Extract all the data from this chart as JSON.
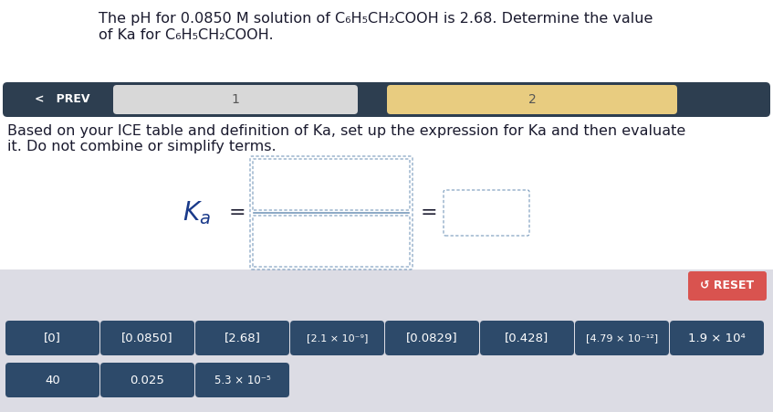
{
  "title_line1": "The pH for 0.0850 M solution of C₆H₅CH₂COOH is 2.68. Determine the value",
  "title_line2": "of Ka for C₆H₅CH₂COOH.",
  "nav_bg": "#2d3e50",
  "nav_label_prev": "<   PREV",
  "nav_tab1": "1",
  "nav_tab2": "2",
  "nav_tab1_color": "#d8d8d8",
  "nav_tab2_color": "#e8cc80",
  "instruction_line1": "Based on your ICE table and definition of Ka, set up the expression for Ka and then evaluate",
  "instruction_line2": "it. Do not combine or simplify terms.",
  "bottom_bg": "#dcdce4",
  "reset_bg": "#d9534f",
  "reset_label": "↺ RESET",
  "button_bg": "#2d4a6a",
  "button_color": "#ffffff",
  "row1_buttons": [
    "[0]",
    "[0.0850]",
    "[2.68]",
    "[2.1 × 10⁻⁹]",
    "[0.0829]",
    "[0.428]",
    "[4.79 × 10⁻¹²]",
    "1.9 × 10⁴"
  ],
  "row2_buttons": [
    "40",
    "0.025",
    "5.3 × 10⁻⁵"
  ],
  "bg_color": "#ffffff",
  "text_color": "#1a1a2e",
  "box_border_color": "#7799bb",
  "ka_color": "#1a3a8a"
}
